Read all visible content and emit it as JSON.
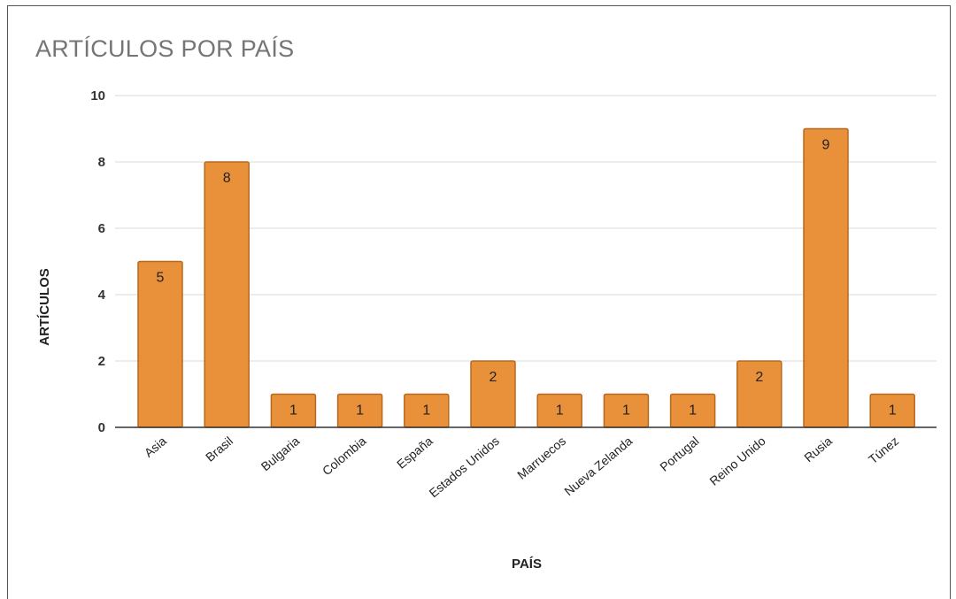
{
  "chart_data": {
    "type": "bar",
    "title": "ARTÍCULOS POR PAÍS",
    "xlabel": "PAÍS",
    "ylabel": "ARTÍCULOS",
    "categories": [
      "Asia",
      "Brasil",
      "Bulgaria",
      "Colombia",
      "España",
      "Estados Unidos",
      "Marruecos",
      "Nueva Zelanda",
      "Portugal",
      "Reino Unido",
      "Rusia",
      "Túnez"
    ],
    "values": [
      5,
      8,
      1,
      1,
      1,
      2,
      1,
      1,
      1,
      2,
      9,
      1
    ],
    "ylim": [
      0,
      10
    ],
    "yticks": [
      0,
      2,
      4,
      6,
      8,
      10
    ],
    "grid": true,
    "legend": "none",
    "data_labels": true,
    "colors": {
      "bar_fill": "#E8903A",
      "bar_stroke": "#B8691E",
      "grid": "#D9D9D9",
      "axis": "#333333"
    }
  }
}
